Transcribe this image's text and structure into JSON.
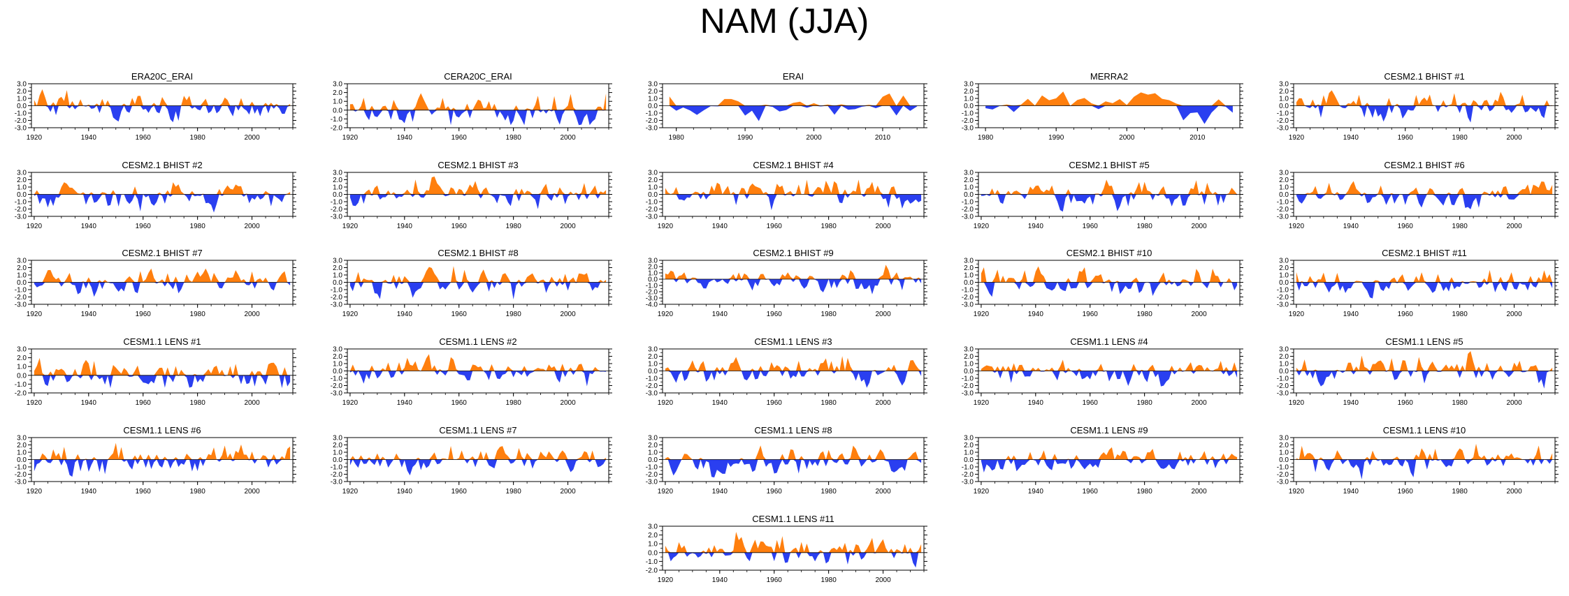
{
  "title": "NAM (JJA)",
  "colors": {
    "positive": "#ff7f0e",
    "negative": "#2a3ff0",
    "frame": "#000000"
  },
  "chart_data": [
    {
      "type": "area",
      "title": "ERA20C_ERAI",
      "x_range": [
        1919,
        2015
      ],
      "xticks": [
        1920,
        1940,
        1960,
        1980,
        2000
      ],
      "yticks": [
        3.0,
        2.0,
        1.0,
        0.0,
        -1.0,
        -2.0,
        -3.0
      ],
      "ylim": [
        -3,
        3
      ],
      "x": [],
      "values": []
    },
    {
      "type": "area",
      "title": "CERA20C_ERAI",
      "x_range": [
        1919,
        2015
      ],
      "xticks": [
        1920,
        1940,
        1960,
        1980,
        2000
      ],
      "yticks": [
        3.0,
        2.0,
        1.0,
        0.0,
        -1.0,
        -2.0
      ],
      "ylim": [
        -2,
        3
      ],
      "x": [],
      "values": []
    },
    {
      "type": "area",
      "title": "ERAI",
      "x_range": [
        1978,
        2016
      ],
      "xticks": [
        1980,
        1990,
        2000,
        2010
      ],
      "yticks": [
        3.0,
        2.0,
        1.0,
        0.0,
        -1.0,
        -2.0,
        -3.0
      ],
      "ylim": [
        -3,
        3
      ],
      "x": [],
      "values": []
    },
    {
      "type": "area",
      "title": "MERRA2",
      "x_range": [
        1979,
        2016
      ],
      "xticks": [
        1980,
        1990,
        2000,
        2010
      ],
      "yticks": [
        3.0,
        2.0,
        1.0,
        0.0,
        -1.0,
        -2.0,
        -3.0
      ],
      "ylim": [
        -3,
        3
      ],
      "x": [],
      "values": []
    },
    {
      "type": "area",
      "title": "CESM2.1 BHIST #1",
      "x_range": [
        1919,
        2015
      ],
      "xticks": [
        1920,
        1940,
        1960,
        1980,
        2000
      ],
      "yticks": [
        3.0,
        2.0,
        1.0,
        0.0,
        -1.0,
        -2.0,
        -3.0
      ],
      "ylim": [
        -3,
        3
      ],
      "x": [],
      "values": []
    },
    {
      "type": "area",
      "title": "CESM2.1 BHIST #2",
      "x_range": [
        1919,
        2015
      ],
      "xticks": [
        1920,
        1940,
        1960,
        1980,
        2000
      ],
      "yticks": [
        3.0,
        2.0,
        1.0,
        0.0,
        -1.0,
        -2.0,
        -3.0
      ],
      "ylim": [
        -3,
        3
      ],
      "x": [],
      "values": []
    },
    {
      "type": "area",
      "title": "CESM2.1 BHIST #3",
      "x_range": [
        1919,
        2015
      ],
      "xticks": [
        1920,
        1940,
        1960,
        1980,
        2000
      ],
      "yticks": [
        3.0,
        2.0,
        1.0,
        0.0,
        -1.0,
        -2.0,
        -3.0
      ],
      "ylim": [
        -3,
        3
      ],
      "x": [],
      "values": []
    },
    {
      "type": "area",
      "title": "CESM2.1 BHIST #4",
      "x_range": [
        1919,
        2015
      ],
      "xticks": [
        1920,
        1940,
        1960,
        1980,
        2000
      ],
      "yticks": [
        3.0,
        2.0,
        1.0,
        0.0,
        -1.0,
        -2.0,
        -3.0
      ],
      "ylim": [
        -3,
        3
      ],
      "x": [],
      "values": []
    },
    {
      "type": "area",
      "title": "CESM2.1 BHIST #5",
      "x_range": [
        1919,
        2015
      ],
      "xticks": [
        1920,
        1940,
        1960,
        1980,
        2000
      ],
      "yticks": [
        3.0,
        2.0,
        1.0,
        0.0,
        -1.0,
        -2.0,
        -3.0
      ],
      "ylim": [
        -3,
        3
      ],
      "x": [],
      "values": []
    },
    {
      "type": "area",
      "title": "CESM2.1 BHIST #6",
      "x_range": [
        1919,
        2015
      ],
      "xticks": [
        1920,
        1940,
        1960,
        1980,
        2000
      ],
      "yticks": [
        3.0,
        2.0,
        1.0,
        0.0,
        -1.0,
        -2.0,
        -3.0
      ],
      "ylim": [
        -3,
        3
      ],
      "x": [],
      "values": []
    },
    {
      "type": "area",
      "title": "CESM2.1 BHIST #7",
      "x_range": [
        1919,
        2015
      ],
      "xticks": [
        1920,
        1940,
        1960,
        1980,
        2000
      ],
      "yticks": [
        3.0,
        2.0,
        1.0,
        0.0,
        -1.0,
        -2.0,
        -3.0
      ],
      "ylim": [
        -3,
        3
      ],
      "x": [],
      "values": []
    },
    {
      "type": "area",
      "title": "CESM2.1 BHIST #8",
      "x_range": [
        1919,
        2015
      ],
      "xticks": [
        1920,
        1940,
        1960,
        1980,
        2000
      ],
      "yticks": [
        3.0,
        2.0,
        1.0,
        0.0,
        -1.0,
        -2.0,
        -3.0
      ],
      "ylim": [
        -3,
        3
      ],
      "x": [],
      "values": []
    },
    {
      "type": "area",
      "title": "CESM2.1 BHIST #9",
      "x_range": [
        1919,
        2015
      ],
      "xticks": [
        1920,
        1940,
        1960,
        1980,
        2000
      ],
      "yticks": [
        3.0,
        2.0,
        1.0,
        0.0,
        -1.0,
        -2.0,
        -3.0,
        -4.0
      ],
      "ylim": [
        -4,
        3
      ],
      "x": [],
      "values": []
    },
    {
      "type": "area",
      "title": "CESM2.1 BHIST #10",
      "x_range": [
        1919,
        2015
      ],
      "xticks": [
        1920,
        1940,
        1960,
        1980,
        2000
      ],
      "yticks": [
        3.0,
        2.0,
        1.0,
        0.0,
        -1.0,
        -2.0,
        -3.0
      ],
      "ylim": [
        -3,
        3
      ],
      "x": [],
      "values": []
    },
    {
      "type": "area",
      "title": "CESM2.1 BHIST #11",
      "x_range": [
        1919,
        2015
      ],
      "xticks": [
        1920,
        1940,
        1960,
        1980,
        2000
      ],
      "yticks": [
        3.0,
        2.0,
        1.0,
        0.0,
        -1.0,
        -2.0,
        -3.0
      ],
      "ylim": [
        -3,
        3
      ],
      "x": [],
      "values": []
    },
    {
      "type": "area",
      "title": "CESM1.1 LENS #1",
      "x_range": [
        1919,
        2015
      ],
      "xticks": [
        1920,
        1940,
        1960,
        1980,
        2000
      ],
      "yticks": [
        3.0,
        2.0,
        1.0,
        0.0,
        -1.0,
        -2.0
      ],
      "ylim": [
        -2,
        3
      ],
      "x": [],
      "values": []
    },
    {
      "type": "area",
      "title": "CESM1.1 LENS #2",
      "x_range": [
        1919,
        2015
      ],
      "xticks": [
        1920,
        1940,
        1960,
        1980,
        2000
      ],
      "yticks": [
        3.0,
        2.0,
        1.0,
        0.0,
        -1.0,
        -2.0,
        -3.0
      ],
      "ylim": [
        -3,
        3
      ],
      "x": [],
      "values": []
    },
    {
      "type": "area",
      "title": "CESM1.1 LENS #3",
      "x_range": [
        1919,
        2015
      ],
      "xticks": [
        1920,
        1940,
        1960,
        1980,
        2000
      ],
      "yticks": [
        3.0,
        2.0,
        1.0,
        0.0,
        -1.0,
        -2.0,
        -3.0
      ],
      "ylim": [
        -3,
        3
      ],
      "x": [],
      "values": []
    },
    {
      "type": "area",
      "title": "CESM1.1 LENS #4",
      "x_range": [
        1919,
        2015
      ],
      "xticks": [
        1920,
        1940,
        1960,
        1980,
        2000
      ],
      "yticks": [
        3.0,
        2.0,
        1.0,
        0.0,
        -1.0,
        -2.0,
        -3.0
      ],
      "ylim": [
        -3,
        3
      ],
      "x": [],
      "values": []
    },
    {
      "type": "area",
      "title": "CESM1.1 LENS #5",
      "x_range": [
        1919,
        2015
      ],
      "xticks": [
        1920,
        1940,
        1960,
        1980,
        2000
      ],
      "yticks": [
        3.0,
        2.0,
        1.0,
        0.0,
        -1.0,
        -2.0,
        -3.0
      ],
      "ylim": [
        -3,
        3
      ],
      "x": [],
      "values": []
    },
    {
      "type": "area",
      "title": "CESM1.1 LENS #6",
      "x_range": [
        1919,
        2015
      ],
      "xticks": [
        1920,
        1940,
        1960,
        1980,
        2000
      ],
      "yticks": [
        3.0,
        2.0,
        1.0,
        0.0,
        -1.0,
        -2.0,
        -3.0
      ],
      "ylim": [
        -3,
        3
      ],
      "x": [],
      "values": []
    },
    {
      "type": "area",
      "title": "CESM1.1 LENS #7",
      "x_range": [
        1919,
        2015
      ],
      "xticks": [
        1920,
        1940,
        1960,
        1980,
        2000
      ],
      "yticks": [
        3.0,
        2.0,
        1.0,
        0.0,
        -1.0,
        -2.0,
        -3.0
      ],
      "ylim": [
        -3,
        3
      ],
      "x": [],
      "values": []
    },
    {
      "type": "area",
      "title": "CESM1.1 LENS #8",
      "x_range": [
        1919,
        2015
      ],
      "xticks": [
        1920,
        1940,
        1960,
        1980,
        2000
      ],
      "yticks": [
        3.0,
        2.0,
        1.0,
        0.0,
        -1.0,
        -2.0,
        -3.0
      ],
      "ylim": [
        -3,
        3
      ],
      "x": [],
      "values": []
    },
    {
      "type": "area",
      "title": "CESM1.1 LENS #9",
      "x_range": [
        1919,
        2015
      ],
      "xticks": [
        1920,
        1940,
        1960,
        1980,
        2000
      ],
      "yticks": [
        3.0,
        2.0,
        1.0,
        0.0,
        -1.0,
        -2.0,
        -3.0
      ],
      "ylim": [
        -3,
        3
      ],
      "x": [],
      "values": []
    },
    {
      "type": "area",
      "title": "CESM1.1 LENS #10",
      "x_range": [
        1919,
        2015
      ],
      "xticks": [
        1920,
        1940,
        1960,
        1980,
        2000
      ],
      "yticks": [
        3.0,
        2.0,
        1.0,
        0.0,
        -1.0,
        -2.0,
        -3.0
      ],
      "ylim": [
        -3,
        3
      ],
      "x": [],
      "values": []
    },
    {
      "type": "area",
      "title": "CESM1.1 LENS #11",
      "x_range": [
        1919,
        2015
      ],
      "xticks": [
        1920,
        1940,
        1960,
        1980,
        2000
      ],
      "yticks": [
        3.0,
        2.0,
        1.0,
        0.0,
        -1.0,
        -2.0
      ],
      "ylim": [
        -2,
        3
      ],
      "x": [],
      "values": []
    }
  ]
}
